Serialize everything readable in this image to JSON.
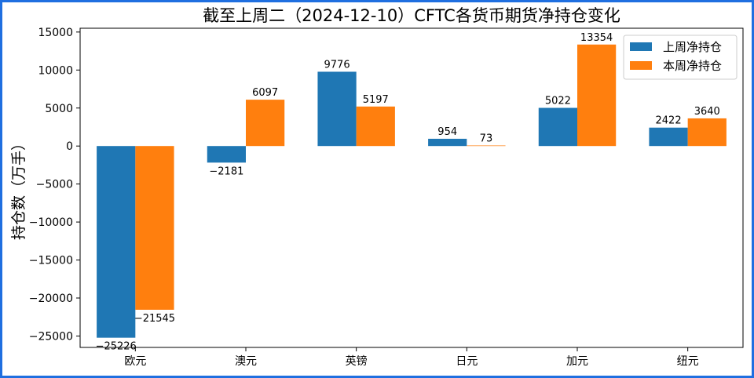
{
  "chart_data": {
    "type": "bar",
    "title": "截至上周二（2024-12-10）CFTC各货币期货净持仓变化",
    "xlabel": "",
    "ylabel": "持仓数（万手）",
    "categories": [
      "欧元",
      "澳元",
      "英镑",
      "日元",
      "加元",
      "纽元"
    ],
    "series": [
      {
        "name": "上周净持仓",
        "values": [
          -25226,
          -2181,
          9776,
          954,
          5022,
          2422
        ],
        "color": "#1f77b4"
      },
      {
        "name": "本周净持仓",
        "values": [
          -21545,
          6097,
          5197,
          73,
          13354,
          3640
        ],
        "color": "#ff7f0e"
      }
    ],
    "ylim": [
      -26500,
      15500
    ],
    "yticks": [
      15000,
      10000,
      5000,
      0,
      -5000,
      -10000,
      -15000,
      -20000,
      -25000
    ],
    "ytick_labels": [
      "15000",
      "10000",
      "5000",
      "0",
      "−5000",
      "−10000",
      "−15000",
      "−20000",
      "−25000"
    ],
    "data_labels": [
      [
        "−25226",
        "−2181",
        "9776",
        "954",
        "5022",
        "2422"
      ],
      [
        "−21545",
        "6097",
        "5197",
        "73",
        "13354",
        "3640"
      ]
    ],
    "grid": false,
    "legend_position": "top-right"
  },
  "colors": {
    "frame_border": "#1f6fe0"
  }
}
